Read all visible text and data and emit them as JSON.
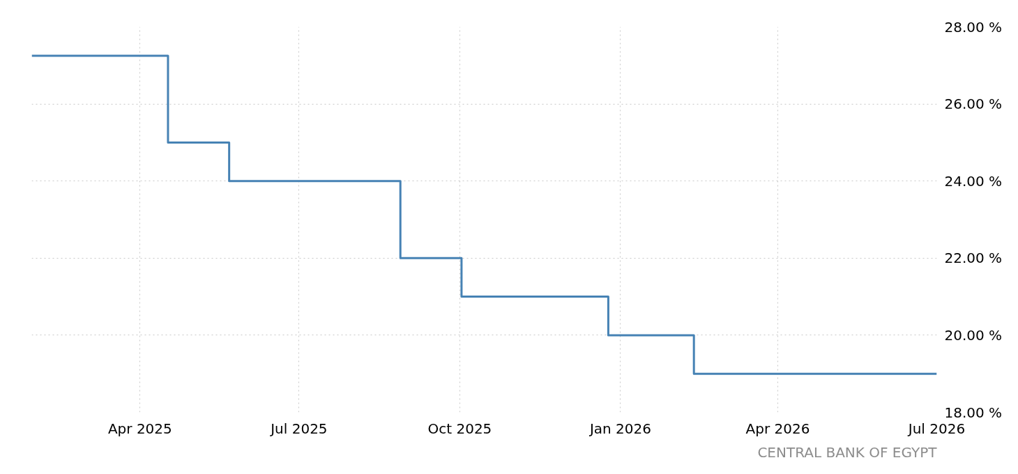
{
  "chart_data": {
    "type": "step",
    "x": [
      "2025-01-29",
      "2025-04-17",
      "2025-05-22",
      "2025-08-28",
      "2025-10-02",
      "2025-12-25",
      "2026-02-12",
      "2026-07-01"
    ],
    "series": [
      {
        "color": "#4682b4",
        "values": [
          27.25,
          25,
          24,
          22,
          21,
          20,
          19,
          19
        ]
      }
    ],
    "xlim": [
      "2025-01-29",
      "2026-07-01"
    ],
    "xticks": [
      {
        "value": "2025-04-01",
        "label": "Apr 2025"
      },
      {
        "value": "2025-07-01",
        "label": "Jul 2025"
      },
      {
        "value": "2025-10-01",
        "label": "Oct 2025"
      },
      {
        "value": "2026-01-01",
        "label": "Jan 2026"
      },
      {
        "value": "2026-04-01",
        "label": "Apr 2026"
      },
      {
        "value": "2026-07-01",
        "label": "Jul 2026"
      }
    ],
    "ylim": [
      18,
      28
    ],
    "yticks": [
      {
        "value": 18,
        "label": "18.00 %"
      },
      {
        "value": 20,
        "label": "20.00 %"
      },
      {
        "value": 22,
        "label": "22.00 %"
      },
      {
        "value": 24,
        "label": "24.00 %"
      },
      {
        "value": 26,
        "label": "26.00 %"
      },
      {
        "value": 28,
        "label": "28.00 %"
      }
    ],
    "grid": true,
    "line_style": "solid",
    "annotations": [
      "CENTRAL BANK OF EGYPT"
    ]
  }
}
